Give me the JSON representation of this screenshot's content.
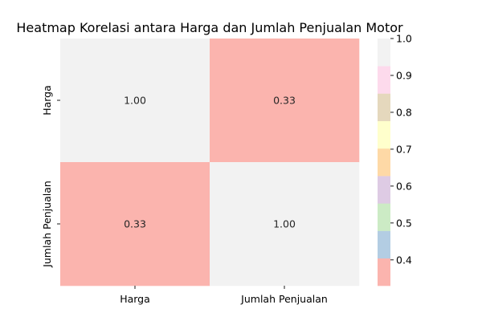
{
  "chart_data": {
    "type": "heatmap",
    "title": "Heatmap Korelasi antara Harga dan Jumlah Penjualan Motor",
    "rows": [
      "Harga",
      "Jumlah Penjualan"
    ],
    "columns": [
      "Harga",
      "Jumlah Penjualan"
    ],
    "values": [
      [
        1.0,
        0.33
      ],
      [
        0.33,
        1.0
      ]
    ],
    "cell_labels": [
      [
        "1.00",
        "0.33"
      ],
      [
        "0.33",
        "1.00"
      ]
    ],
    "colormap": "Pastel1",
    "vmin": 0.33,
    "vmax": 1.0,
    "colorbar": {
      "ticks": [
        0.4,
        0.5,
        0.6,
        0.7,
        0.8,
        0.9,
        1.0
      ],
      "tick_labels": [
        "0.4",
        "0.5",
        "0.6",
        "0.7",
        "0.8",
        "0.9",
        "1.0"
      ],
      "colors": [
        "#fbb4ae",
        "#b3cde3",
        "#ccebc5",
        "#decbe4",
        "#fed9a6",
        "#ffffcc",
        "#e5d8bd",
        "#fddaec",
        "#f2f2f2"
      ]
    },
    "grid": false
  }
}
